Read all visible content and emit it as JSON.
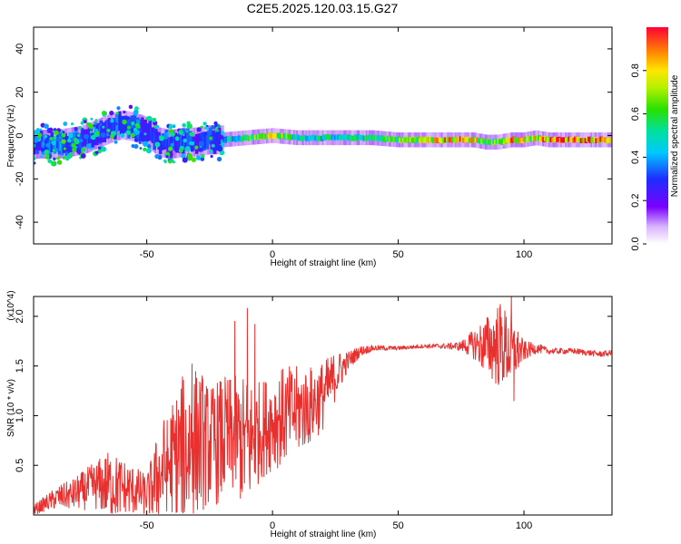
{
  "figure_title": "C2E5.2025.120.03.15.G27",
  "chart_data": [
    {
      "type": "heatmap",
      "xlabel": "Height of straight line (km)",
      "ylabel": "Frequency (Hz)",
      "xlim": [
        -95,
        135
      ],
      "ylim": [
        -50,
        50
      ],
      "x_ticks": [
        -50,
        0,
        50,
        100
      ],
      "y_ticks": [
        -40,
        -20,
        0,
        20,
        40
      ],
      "x_tick_labels": [
        "-50",
        "0",
        "50",
        "100"
      ],
      "y_tick_labels": [
        "-40",
        "-20",
        "0",
        "20",
        "40"
      ],
      "colorbar": {
        "label": "Normalized spectral amplitude",
        "range": [
          0,
          1
        ],
        "ticks": [
          0.0,
          0.2,
          0.4,
          0.6,
          0.8
        ],
        "tick_labels": [
          "0.0",
          "0.2",
          "0.4",
          "0.6",
          "0.8"
        ],
        "colormap": "rainbow (white-violet-blue-cyan-green-yellow-orange-red)"
      },
      "ridge": {
        "x": [
          -95,
          -85,
          -75,
          -65,
          -60,
          -55,
          -50,
          -45,
          -40,
          -35,
          -30,
          -25,
          -20,
          -10,
          0,
          10,
          20,
          30,
          40,
          50,
          60,
          70,
          80,
          85,
          90,
          95,
          100,
          105,
          110,
          120,
          135
        ],
        "freq": [
          -4,
          -4,
          -2,
          3,
          5,
          4,
          2,
          -3,
          -4,
          -3,
          -3,
          -2,
          -2,
          -1,
          0,
          -1,
          -1,
          -1,
          -1,
          -2,
          -2,
          -2,
          -2,
          -3,
          -3,
          -2,
          -2,
          -1,
          -2,
          -2,
          -2
        ],
        "amplitude": [
          0.3,
          0.35,
          0.35,
          0.3,
          0.35,
          0.3,
          0.25,
          0.3,
          0.3,
          0.3,
          0.3,
          0.35,
          0.4,
          0.6,
          0.8,
          0.5,
          0.5,
          0.5,
          0.55,
          0.65,
          0.75,
          0.85,
          0.85,
          0.6,
          0.65,
          0.9,
          0.8,
          0.75,
          0.95,
          0.95,
          0.9
        ]
      }
    },
    {
      "type": "line",
      "xlabel": "Height of straight line (km)",
      "ylabel": "SNR (10 * v/v)",
      "y_scale_label": "(x10^4)",
      "xlim": [
        -95,
        135
      ],
      "ylim": [
        0,
        2.2
      ],
      "x_ticks": [
        -50,
        0,
        50,
        100
      ],
      "y_ticks": [
        0.5,
        1.0,
        1.5,
        2.0
      ],
      "x_tick_labels": [
        "-50",
        "0",
        "50",
        "100"
      ],
      "y_tick_labels": [
        "0.5",
        "1.0",
        "1.5",
        "2.0"
      ],
      "color": "#e8302f",
      "series": [
        {
          "x": [
            -95,
            -90,
            -85,
            -80,
            -75,
            -70,
            -65,
            -60,
            -55,
            -50,
            -45,
            -40,
            -35,
            -30,
            -25,
            -20,
            -15,
            -10,
            -5,
            0,
            5,
            10,
            15,
            20,
            25,
            30,
            35,
            40,
            50,
            60,
            70,
            75,
            80,
            85,
            90,
            95,
            100,
            105,
            110,
            120,
            130,
            135
          ],
          "values": [
            0.05,
            0.12,
            0.18,
            0.2,
            0.25,
            0.3,
            0.3,
            0.28,
            0.25,
            0.2,
            0.4,
            0.55,
            0.65,
            0.75,
            0.7,
            0.75,
            0.8,
            0.7,
            0.85,
            0.95,
            1.0,
            1.05,
            1.1,
            1.2,
            1.4,
            1.55,
            1.65,
            1.68,
            1.68,
            1.7,
            1.7,
            1.7,
            1.72,
            1.7,
            1.72,
            1.65,
            1.65,
            1.68,
            1.65,
            1.65,
            1.62,
            1.63
          ],
          "fluctuation": [
            0.05,
            0.08,
            0.12,
            0.15,
            0.2,
            0.25,
            0.35,
            0.3,
            0.25,
            0.2,
            0.5,
            0.6,
            0.8,
            0.75,
            0.6,
            0.65,
            0.6,
            0.7,
            0.5,
            0.5,
            0.5,
            0.45,
            0.4,
            0.35,
            0.25,
            0.1,
            0.05,
            0.03,
            0.02,
            0.02,
            0.03,
            0.05,
            0.15,
            0.3,
            0.45,
            0.35,
            0.1,
            0.05,
            0.03,
            0.03,
            0.03,
            0.03
          ],
          "peaks": [
            [
              -10,
              2.08
            ],
            [
              -32,
              1.52
            ],
            [
              -28,
              1.4
            ],
            [
              95,
              2.2
            ],
            [
              96,
              1.15
            ],
            [
              -15,
              1.95
            ],
            [
              -7,
              1.92
            ]
          ]
        }
      ]
    }
  ]
}
